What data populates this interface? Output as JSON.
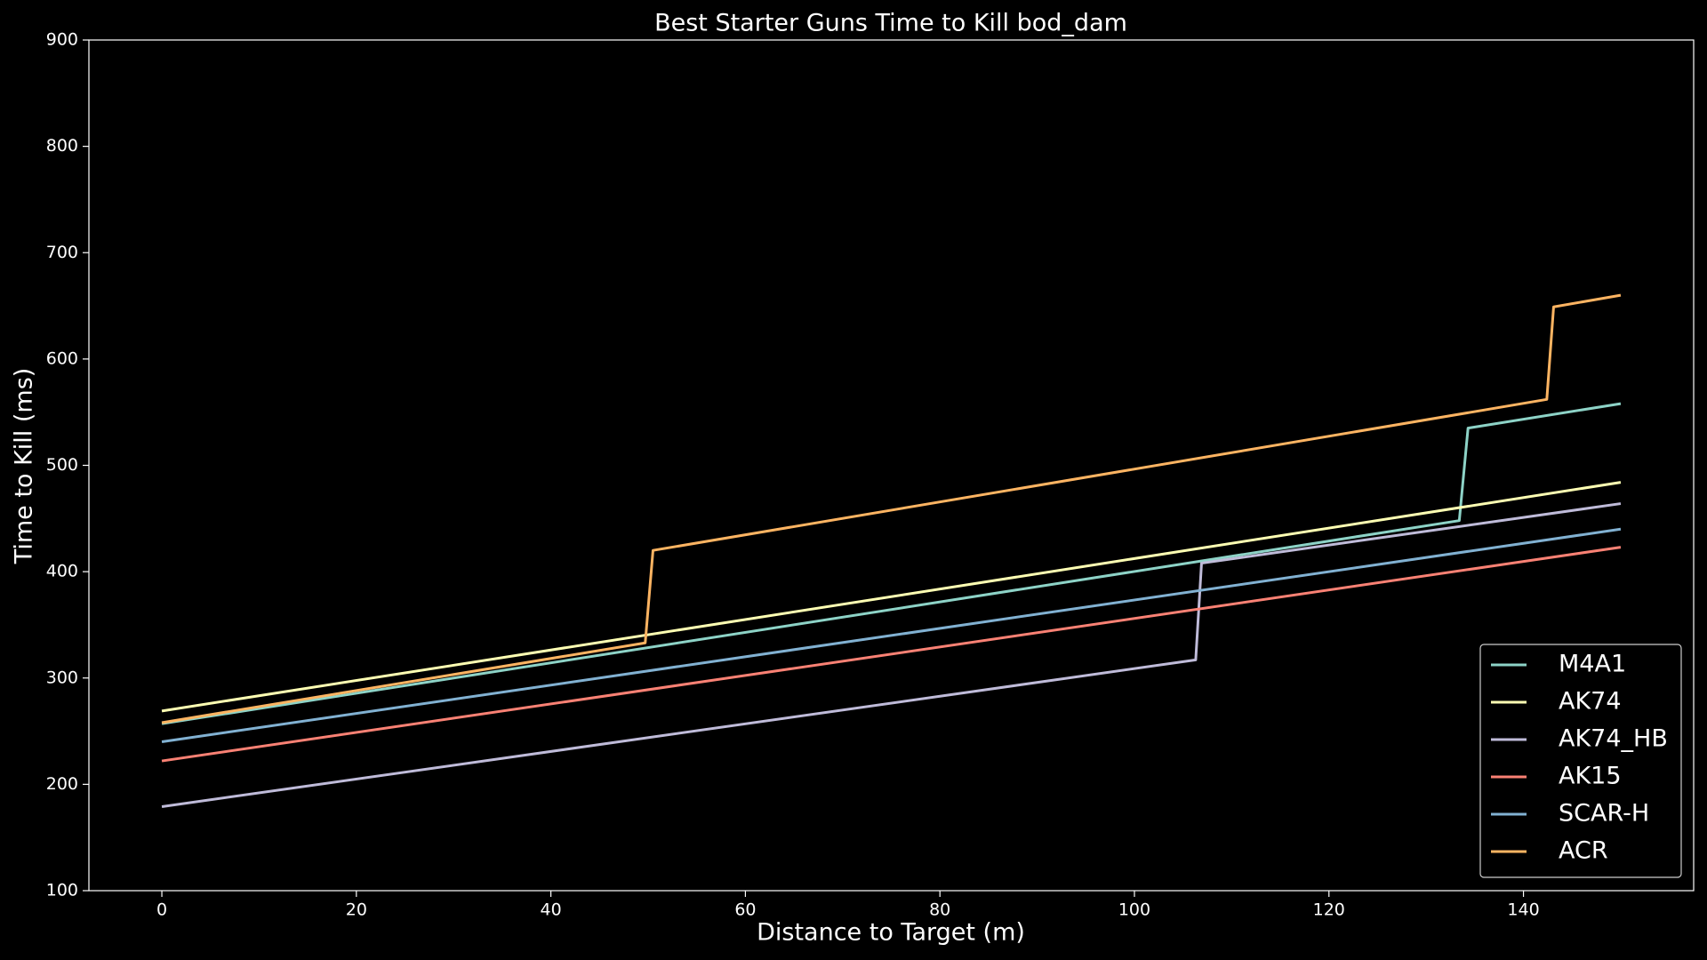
{
  "chart_data": {
    "type": "line",
    "title": "Best Starter Guns Time to Kill bod_dam",
    "xlabel": "Distance to Target (m)",
    "ylabel": "Time to Kill (ms)",
    "xlim": [
      -7.5,
      157.5
    ],
    "xticks": [
      0,
      20,
      40,
      60,
      80,
      100,
      120,
      140
    ],
    "ylim": [
      100,
      900
    ],
    "yticks": [
      100,
      200,
      300,
      400,
      500,
      600,
      700,
      800,
      900
    ],
    "legend": "lower right",
    "series": [
      {
        "name": "M4A1",
        "color": "#8dd3c7",
        "x": [
          0,
          133.4,
          134.3,
          150
        ],
        "values": [
          257,
          448,
          535,
          558
        ]
      },
      {
        "name": "AK74",
        "color": "#feffb3",
        "x": [
          0,
          150
        ],
        "values": [
          269,
          484
        ]
      },
      {
        "name": "AK74_HB",
        "color": "#bfbbd9",
        "x": [
          0,
          106.3,
          106.9,
          150
        ],
        "values": [
          179,
          317,
          408,
          464
        ]
      },
      {
        "name": "AK15",
        "color": "#fa8174",
        "x": [
          0,
          150
        ],
        "values": [
          222,
          423
        ]
      },
      {
        "name": "SCAR-H",
        "color": "#81b1d2",
        "x": [
          0,
          150
        ],
        "values": [
          240,
          440
        ]
      },
      {
        "name": "ACR",
        "color": "#fdb462",
        "x": [
          0,
          49.7,
          50.5,
          142.4,
          143.1,
          150
        ],
        "values": [
          258,
          333,
          420,
          562,
          649,
          660
        ]
      }
    ]
  }
}
